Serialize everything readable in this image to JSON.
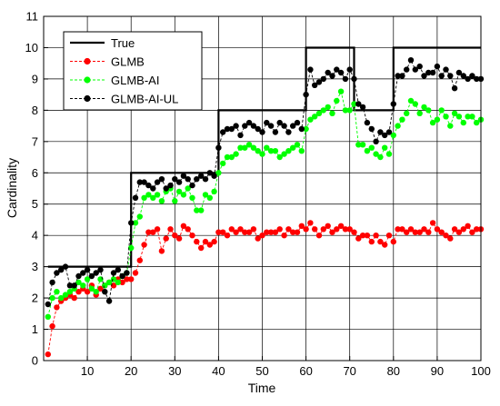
{
  "chart_data": {
    "type": "line",
    "title": "",
    "xlabel": "Time",
    "ylabel": "Cardinality",
    "xlim": [
      0,
      100
    ],
    "ylim": [
      0,
      11
    ],
    "xticks": [
      10,
      20,
      30,
      40,
      50,
      60,
      70,
      80,
      90,
      100
    ],
    "yticks": [
      0,
      1,
      2,
      3,
      4,
      5,
      6,
      7,
      8,
      9,
      10,
      11
    ],
    "grid": true,
    "legend": {
      "position": "top-left"
    },
    "series": [
      {
        "name": "True",
        "style": "step",
        "color": "#000000",
        "x": [
          1,
          20,
          20,
          40,
          40,
          60,
          60,
          71,
          71,
          80,
          80,
          100
        ],
        "y": [
          3,
          3,
          6,
          6,
          8,
          8,
          10,
          10,
          8,
          8,
          10,
          10
        ]
      },
      {
        "name": "GLMB",
        "color": "#ff0000",
        "x": [
          1,
          2,
          3,
          4,
          5,
          6,
          7,
          8,
          9,
          10,
          11,
          12,
          13,
          14,
          15,
          16,
          17,
          18,
          19,
          20,
          21,
          22,
          23,
          24,
          25,
          26,
          27,
          28,
          29,
          30,
          31,
          32,
          33,
          34,
          35,
          36,
          37,
          38,
          39,
          40,
          41,
          42,
          43,
          44,
          45,
          46,
          47,
          48,
          49,
          50,
          51,
          52,
          53,
          54,
          55,
          56,
          57,
          58,
          59,
          60,
          61,
          62,
          63,
          64,
          65,
          66,
          67,
          68,
          69,
          70,
          71,
          72,
          73,
          74,
          75,
          76,
          77,
          78,
          79,
          80,
          81,
          82,
          83,
          84,
          85,
          86,
          87,
          88,
          89,
          90,
          91,
          92,
          93,
          94,
          95,
          96,
          97,
          98,
          99,
          100
        ],
        "y": [
          0.2,
          1.1,
          1.7,
          1.9,
          2.0,
          2.1,
          2.0,
          2.2,
          2.3,
          2.2,
          2.4,
          2.1,
          2.3,
          2.4,
          2.5,
          2.4,
          2.6,
          2.5,
          2.6,
          2.6,
          2.8,
          3.2,
          3.7,
          4.1,
          4.1,
          4.2,
          3.5,
          3.9,
          4.2,
          4.0,
          3.9,
          4.3,
          4.2,
          4.0,
          3.8,
          3.6,
          3.8,
          3.7,
          3.8,
          4.1,
          4.1,
          4.0,
          4.2,
          4.1,
          4.2,
          4.1,
          4.1,
          4.2,
          3.9,
          4.0,
          4.1,
          4.1,
          4.1,
          4.2,
          4.0,
          4.2,
          4.1,
          4.1,
          4.3,
          4.2,
          4.4,
          4.2,
          4.0,
          4.2,
          4.3,
          4.1,
          4.2,
          4.3,
          4.2,
          4.2,
          4.1,
          3.9,
          4.0,
          4.0,
          3.8,
          4.0,
          3.8,
          3.7,
          4.0,
          3.8,
          4.2,
          4.2,
          4.1,
          4.2,
          4.1,
          4.1,
          4.2,
          4.1,
          4.4,
          4.2,
          4.1,
          4.0,
          3.9,
          4.2,
          4.1,
          4.2,
          4.3,
          4.1,
          4.2,
          4.2
        ]
      },
      {
        "name": "GLMB-AI",
        "color": "#00ff00",
        "x": [
          1,
          2,
          3,
          4,
          5,
          6,
          7,
          8,
          9,
          10,
          11,
          12,
          13,
          14,
          15,
          16,
          17,
          18,
          19,
          20,
          21,
          22,
          23,
          24,
          25,
          26,
          27,
          28,
          29,
          30,
          31,
          32,
          33,
          34,
          35,
          36,
          37,
          38,
          39,
          40,
          41,
          42,
          43,
          44,
          45,
          46,
          47,
          48,
          49,
          50,
          51,
          52,
          53,
          54,
          55,
          56,
          57,
          58,
          59,
          60,
          61,
          62,
          63,
          64,
          65,
          66,
          67,
          68,
          69,
          70,
          71,
          72,
          73,
          74,
          75,
          76,
          77,
          78,
          79,
          80,
          81,
          82,
          83,
          84,
          85,
          86,
          87,
          88,
          89,
          90,
          91,
          92,
          93,
          94,
          95,
          96,
          97,
          98,
          99,
          100
        ],
        "y": [
          1.4,
          2.0,
          2.2,
          2.0,
          2.1,
          2.2,
          2.3,
          2.5,
          2.4,
          2.6,
          2.3,
          2.2,
          2.6,
          2.4,
          2.5,
          2.6,
          2.5,
          2.7,
          2.8,
          3.6,
          4.4,
          4.6,
          5.2,
          5.3,
          5.2,
          5.3,
          5.1,
          5.4,
          5.5,
          5.1,
          5.4,
          5.3,
          5.5,
          5.2,
          4.8,
          4.8,
          5.3,
          5.2,
          5.4,
          6.0,
          6.3,
          6.5,
          6.5,
          6.6,
          6.8,
          6.8,
          6.9,
          6.8,
          6.7,
          6.6,
          6.8,
          6.7,
          6.7,
          6.5,
          6.6,
          6.7,
          6.8,
          6.9,
          6.7,
          7.4,
          7.7,
          7.8,
          7.9,
          8.0,
          8.1,
          7.9,
          8.3,
          8.6,
          8.0,
          8.0,
          8.2,
          6.9,
          6.9,
          6.7,
          6.8,
          6.6,
          6.5,
          6.8,
          6.6,
          7.2,
          7.5,
          7.7,
          7.9,
          8.3,
          8.2,
          7.9,
          8.1,
          8.0,
          7.6,
          7.7,
          8.0,
          7.8,
          7.5,
          7.9,
          7.8,
          7.6,
          7.8,
          7.8,
          7.6,
          7.7
        ]
      },
      {
        "name": "GLMB-AI-UL",
        "color": "#000000",
        "x": [
          1,
          2,
          3,
          4,
          5,
          6,
          7,
          8,
          9,
          10,
          11,
          12,
          13,
          14,
          15,
          16,
          17,
          18,
          19,
          20,
          21,
          22,
          23,
          24,
          25,
          26,
          27,
          28,
          29,
          30,
          31,
          32,
          33,
          34,
          35,
          36,
          37,
          38,
          39,
          40,
          41,
          42,
          43,
          44,
          45,
          46,
          47,
          48,
          49,
          50,
          51,
          52,
          53,
          54,
          55,
          56,
          57,
          58,
          59,
          60,
          61,
          62,
          63,
          64,
          65,
          66,
          67,
          68,
          69,
          70,
          71,
          72,
          73,
          74,
          75,
          76,
          77,
          78,
          79,
          80,
          81,
          82,
          83,
          84,
          85,
          86,
          87,
          88,
          89,
          90,
          91,
          92,
          93,
          94,
          95,
          96,
          97,
          98,
          99,
          100
        ],
        "y": [
          1.8,
          2.5,
          2.8,
          2.9,
          3.0,
          2.4,
          2.4,
          2.7,
          2.8,
          2.9,
          2.7,
          2.8,
          2.9,
          2.2,
          1.9,
          2.8,
          2.9,
          2.7,
          2.8,
          4.4,
          5.2,
          5.7,
          5.7,
          5.6,
          5.5,
          5.7,
          5.8,
          5.5,
          5.6,
          5.8,
          5.7,
          5.9,
          5.8,
          5.6,
          5.8,
          5.9,
          5.8,
          6.0,
          5.9,
          6.8,
          7.3,
          7.4,
          7.4,
          7.5,
          7.2,
          7.5,
          7.6,
          7.5,
          7.4,
          7.3,
          7.6,
          7.5,
          7.3,
          7.6,
          7.5,
          7.3,
          7.5,
          7.6,
          7.4,
          8.5,
          9.3,
          8.8,
          8.9,
          9.0,
          9.2,
          9.1,
          9.3,
          9.2,
          9.0,
          9.3,
          9.0,
          8.2,
          8.1,
          7.6,
          7.4,
          7.0,
          7.3,
          7.2,
          7.3,
          8.2,
          9.1,
          9.1,
          9.3,
          9.6,
          9.3,
          9.4,
          9.1,
          9.2,
          9.2,
          9.4,
          9.1,
          9.3,
          9.1,
          8.7,
          9.2,
          9.1,
          9.0,
          9.1,
          9.0,
          9.0
        ]
      }
    ]
  }
}
